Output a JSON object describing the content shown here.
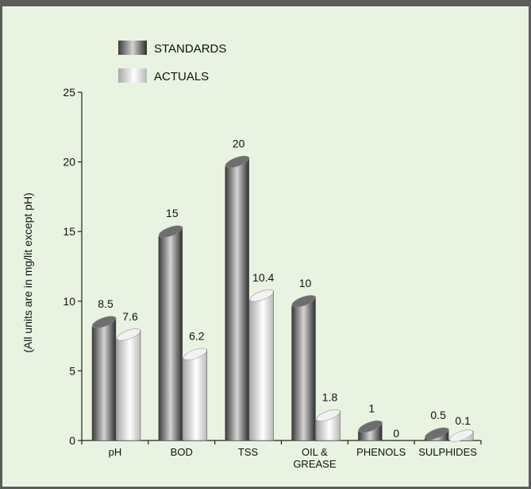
{
  "chart_data": {
    "type": "bar",
    "title": "",
    "xlabel": "",
    "ylabel": "(All units are in mg/lit except pH)",
    "ylim": [
      0,
      25
    ],
    "yticks": [
      0,
      5,
      10,
      15,
      20,
      25
    ],
    "grid": false,
    "legend_position": "top-left",
    "categories": [
      [
        "pH"
      ],
      [
        "BOD"
      ],
      [
        "TSS"
      ],
      [
        "OIL &",
        "GREASE"
      ],
      [
        "PHENOLS"
      ],
      [
        "SULPHIDES"
      ]
    ],
    "series": [
      {
        "name": "STANDARDS",
        "values": [
          8.5,
          15,
          20,
          10,
          1,
          0.5
        ],
        "labels": [
          "8.5",
          "15",
          "20",
          "10",
          "1",
          "0.5"
        ],
        "color": "#5a5a5a"
      },
      {
        "name": "ACTUALS",
        "values": [
          7.6,
          6.2,
          10.4,
          1.8,
          0,
          0.1
        ],
        "labels": [
          "7.6",
          "6.2",
          "10.4",
          "1.8",
          "0",
          "0.1"
        ],
        "color": "#d8d8d8"
      }
    ]
  }
}
